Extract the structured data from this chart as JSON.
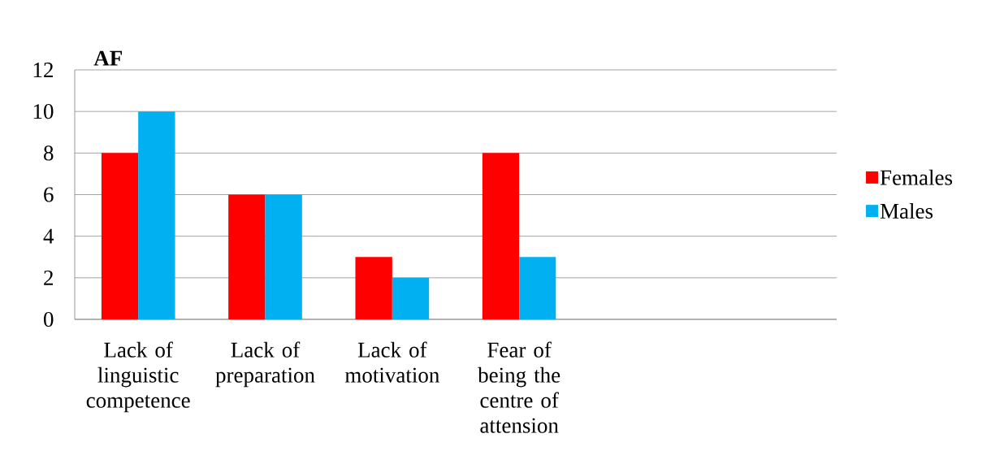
{
  "chart_data": {
    "type": "bar",
    "ylabel": "AF",
    "categories": [
      "Lack of linguistic competence",
      "Lack of preparation",
      "Lack of motivation",
      "Fear of being the centre of attension",
      null,
      null
    ],
    "series": [
      {
        "name": "Females",
        "color": "#ff0000",
        "values": [
          8,
          6,
          3,
          8,
          null,
          null
        ]
      },
      {
        "name": "Males",
        "color": "#00b0f0",
        "values": [
          10,
          6,
          2,
          3,
          null,
          null
        ]
      }
    ],
    "ylim": [
      0,
      12
    ],
    "yticks": [
      0,
      2,
      4,
      6,
      8,
      10,
      12
    ],
    "grid": "y",
    "legend": "right"
  }
}
